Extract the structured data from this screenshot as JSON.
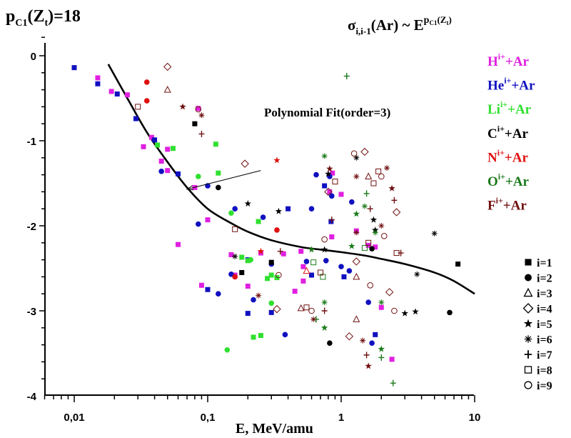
{
  "chart_data": {
    "type": "scatter",
    "title_left": {
      "main": "p",
      "sub": "C1",
      "paren": "(Z",
      "paren_sub": "t",
      "rest": ")=18"
    },
    "title_right": {
      "sigma": "σ",
      "sigma_sub": "i,i-1",
      "mid": "(Ar) ~ E",
      "exp": "p",
      "exp_sub": "C1",
      "exp_paren": "(Z",
      "exp_paren_sub": "t",
      "exp_close": ")"
    },
    "xlabel": "E, MeV/amu",
    "ylabel": "",
    "xscale": "log",
    "xlim": [
      0.006,
      10
    ],
    "ylim": [
      -4,
      0.25
    ],
    "xticks": [
      {
        "v": 0.01,
        "label": "0,01"
      },
      {
        "v": 0.1,
        "label": "0,1"
      },
      {
        "v": 1,
        "label": "1"
      },
      {
        "v": 10,
        "label": "10"
      }
    ],
    "yticks": [
      {
        "v": 0,
        "label": "0"
      },
      {
        "v": -1,
        "label": "-1"
      },
      {
        "v": -2,
        "label": "-2"
      },
      {
        "v": -3,
        "label": "-3"
      },
      {
        "v": -4,
        "label": "-4"
      }
    ],
    "annotation": {
      "text": "Polynomial Fit(order=3)",
      "arrow_from": [
        0.25,
        -1.35
      ],
      "arrow_to": [
        0.07,
        -1.57
      ]
    },
    "fit_curve": {
      "name": "Polynomial Fit(order=3)",
      "x": [
        0.018,
        0.025,
        0.035,
        0.05,
        0.07,
        0.1,
        0.15,
        0.2,
        0.3,
        0.5,
        0.7,
        1.0,
        1.5,
        2.0,
        3.0,
        5.0,
        7.0,
        10.0
      ],
      "y": [
        -0.1,
        -0.5,
        -0.9,
        -1.25,
        -1.55,
        -1.8,
        -1.97,
        -2.07,
        -2.17,
        -2.25,
        -2.28,
        -2.31,
        -2.35,
        -2.39,
        -2.45,
        -2.55,
        -2.65,
        -2.8
      ]
    },
    "legend_projectiles": [
      {
        "label": "H",
        "sup": "i+",
        "suffix": "+Ar",
        "color": "#e020e0"
      },
      {
        "label": "He",
        "sup": "i+",
        "suffix": "+Ar",
        "color": "#1010c0"
      },
      {
        "label": "Li",
        "sup": "i+",
        "suffix": "+Ar",
        "color": "#30e030"
      },
      {
        "label": "C",
        "sup": "i+",
        "suffix": "+Ar",
        "color": "#000000"
      },
      {
        "label": "N",
        "sup": "i+",
        "suffix": "+Ar",
        "color": "#e01010"
      },
      {
        "label": "O",
        "sup": "i+",
        "suffix": "+Ar",
        "color": "#1a7a1a"
      },
      {
        "label": "F",
        "sup": "i+",
        "suffix": "+Ar",
        "color": "#701010"
      }
    ],
    "legend_charge": [
      {
        "marker": "square",
        "label": "i=1"
      },
      {
        "marker": "circle",
        "label": "i=2"
      },
      {
        "marker": "triangle",
        "label": "i=3"
      },
      {
        "marker": "diamond",
        "label": "i=4"
      },
      {
        "marker": "star",
        "label": "i=5"
      },
      {
        "marker": "asterisk",
        "label": "i=6"
      },
      {
        "marker": "plus",
        "label": "i=7"
      },
      {
        "marker": "open-square",
        "label": "i=8"
      },
      {
        "marker": "open-circle",
        "label": "i=9"
      }
    ],
    "series": [
      {
        "name": "H",
        "color": "#e020e0",
        "points": [
          [
            0.015,
            -0.26
          ],
          [
            0.019,
            -0.42
          ],
          [
            0.025,
            -0.46
          ],
          [
            0.038,
            -0.96
          ],
          [
            0.033,
            -1.07
          ],
          [
            0.045,
            -1.24
          ],
          [
            0.05,
            -1.35
          ],
          [
            0.085,
            -0.62
          ],
          [
            0.05,
            -1.1
          ],
          [
            0.08,
            -1.55
          ],
          [
            0.06,
            -2.22
          ],
          [
            0.1,
            -1.93
          ],
          [
            0.15,
            -2.34
          ],
          [
            0.09,
            -2.7
          ],
          [
            0.25,
            -2.32
          ],
          [
            0.37,
            -2.33
          ],
          [
            0.5,
            -2.3
          ],
          [
            0.52,
            -2.48
          ],
          [
            0.52,
            -2.65
          ],
          [
            0.2,
            -2.71
          ],
          [
            0.45,
            -2.77
          ],
          [
            0.82,
            -1.6
          ],
          [
            0.86,
            -1.38
          ],
          [
            1.3,
            -2.06
          ],
          [
            1.6,
            -2.23
          ],
          [
            1.8,
            -2.25
          ],
          [
            2.0,
            -2.96
          ],
          [
            2.4,
            -3.57
          ],
          [
            0.85,
            -2.13
          ],
          [
            0.16,
            -2.58
          ],
          [
            1.0,
            -1.63
          ]
        ]
      },
      {
        "name": "He",
        "color": "#1010c0",
        "points": [
          [
            0.01,
            -0.14
          ],
          [
            0.015,
            -0.33
          ],
          [
            0.021,
            -0.45
          ],
          [
            0.029,
            -0.74
          ],
          [
            0.04,
            -0.99
          ],
          [
            0.045,
            -1.36
          ],
          [
            0.06,
            -1.39
          ],
          [
            0.1,
            -1.53
          ],
          [
            0.085,
            -1.98
          ],
          [
            0.1,
            -2.75
          ],
          [
            0.15,
            -2.57
          ],
          [
            0.12,
            -2.8
          ],
          [
            0.2,
            -3.03
          ],
          [
            0.22,
            -2.87
          ],
          [
            0.38,
            -3.28
          ],
          [
            0.3,
            -3.02
          ],
          [
            0.6,
            -1.8
          ],
          [
            0.65,
            -1.4
          ],
          [
            0.75,
            -1.53
          ],
          [
            0.82,
            -1.42
          ],
          [
            0.85,
            -1.65
          ],
          [
            0.84,
            -1.95
          ],
          [
            1.2,
            -1.72
          ],
          [
            0.55,
            -2.42
          ],
          [
            0.6,
            -2.58
          ],
          [
            0.77,
            -2.41
          ],
          [
            1.0,
            -2.48
          ],
          [
            1.05,
            -2.6
          ],
          [
            1.15,
            -2.53
          ],
          [
            1.6,
            -2.9
          ],
          [
            1.8,
            -3.28
          ],
          [
            1.7,
            -3.38
          ],
          [
            0.3,
            -2.45
          ],
          [
            0.2,
            -2.4
          ],
          [
            0.16,
            -1.8
          ],
          [
            0.26,
            -1.9
          ],
          [
            0.4,
            -1.8
          ]
        ]
      },
      {
        "name": "Li",
        "color": "#30e030",
        "points": [
          [
            0.042,
            -1.05
          ],
          [
            0.055,
            -1.09
          ],
          [
            0.085,
            -1.42
          ],
          [
            0.115,
            -1.04
          ],
          [
            0.12,
            -1.38
          ],
          [
            0.15,
            -1.85
          ],
          [
            0.24,
            -1.95
          ],
          [
            0.18,
            -2.37
          ],
          [
            0.21,
            -2.4
          ],
          [
            0.3,
            -2.58
          ],
          [
            0.33,
            -2.61
          ],
          [
            0.3,
            -2.91
          ],
          [
            0.22,
            -3.31
          ],
          [
            0.25,
            -3.29
          ],
          [
            0.14,
            -3.46
          ],
          [
            0.28,
            -2.62
          ],
          [
            0.2,
            -2.41
          ]
        ]
      },
      {
        "name": "C",
        "color": "#000000",
        "points": [
          [
            0.08,
            -0.8
          ],
          [
            0.12,
            -1.55
          ],
          [
            0.2,
            -1.74
          ],
          [
            0.34,
            -1.83
          ],
          [
            0.16,
            -2.36
          ],
          [
            0.18,
            -2.55
          ],
          [
            0.82,
            -3.38
          ],
          [
            1.8,
            -2.05
          ],
          [
            0.8,
            -1.39
          ],
          [
            1.3,
            -1.2
          ],
          [
            0.3,
            -2.43
          ],
          [
            1.7,
            -2.27
          ],
          [
            3.0,
            -3.03
          ],
          [
            3.6,
            -3.01
          ],
          [
            5.0,
            -2.09
          ],
          [
            7.5,
            -2.45
          ],
          [
            6.5,
            -3.02
          ],
          [
            1.75,
            -1.93
          ],
          [
            0.75,
            -2.28
          ],
          [
            3.7,
            -2.57
          ]
        ]
      },
      {
        "name": "N",
        "color": "#e01010",
        "points": [
          [
            0.035,
            -0.31
          ],
          [
            0.035,
            -0.53
          ],
          [
            0.16,
            -2.6
          ],
          [
            0.33,
            -2.05
          ],
          [
            0.33,
            -1.23
          ],
          [
            0.25,
            -2.3
          ],
          [
            0.55,
            -2.53
          ]
        ]
      },
      {
        "name": "O",
        "color": "#1a7a1a",
        "points": [
          [
            1.1,
            -0.24
          ],
          [
            0.75,
            -1.18
          ],
          [
            0.6,
            -2.28
          ],
          [
            0.73,
            -2.6
          ],
          [
            0.75,
            -2.9
          ],
          [
            0.75,
            -3.2
          ],
          [
            0.65,
            -3.1
          ],
          [
            1.55,
            -1.62
          ],
          [
            1.5,
            -1.77
          ],
          [
            1.3,
            -1.86
          ],
          [
            1.5,
            -2.26
          ],
          [
            2.0,
            -2.9
          ],
          [
            2.0,
            -3.45
          ],
          [
            2.0,
            -3.55
          ],
          [
            2.45,
            -3.85
          ],
          [
            1.8,
            -2.08
          ],
          [
            1.2,
            -2.24
          ],
          [
            0.62,
            -2.43
          ]
        ]
      },
      {
        "name": "F",
        "color": "#701010",
        "points": [
          [
            0.05,
            -0.13
          ],
          [
            0.05,
            -0.4
          ],
          [
            0.03,
            -0.6
          ],
          [
            0.085,
            -0.63
          ],
          [
            0.09,
            -0.7
          ],
          [
            0.09,
            -0.92
          ],
          [
            0.065,
            -0.6
          ],
          [
            0.19,
            -1.27
          ],
          [
            0.16,
            -2.04
          ],
          [
            0.35,
            -2.3
          ],
          [
            0.34,
            -2.58
          ],
          [
            0.24,
            -2.82
          ],
          [
            0.33,
            -2.98
          ],
          [
            0.5,
            -2.97
          ],
          [
            0.55,
            -2.96
          ],
          [
            0.6,
            -3.0
          ],
          [
            0.62,
            -3.1
          ],
          [
            0.75,
            -3.0
          ],
          [
            0.82,
            -1.33
          ],
          [
            0.8,
            -1.6
          ],
          [
            0.9,
            -1.48
          ],
          [
            0.85,
            -1.93
          ],
          [
            1.25,
            -1.15
          ],
          [
            1.3,
            -1.42
          ],
          [
            1.5,
            -1.13
          ],
          [
            1.6,
            -1.42
          ],
          [
            1.9,
            -1.36
          ],
          [
            2.0,
            -1.42
          ],
          [
            2.2,
            -1.32
          ],
          [
            2.5,
            -1.7
          ],
          [
            2.4,
            -1.56
          ],
          [
            2.6,
            -1.84
          ],
          [
            1.75,
            -1.5
          ],
          [
            1.65,
            -1.8
          ],
          [
            2.1,
            -2.12
          ],
          [
            1.3,
            -2.08
          ],
          [
            1.3,
            -2.42
          ],
          [
            1.3,
            -2.6
          ],
          [
            1.6,
            -2.2
          ],
          [
            1.65,
            -2.7
          ],
          [
            1.45,
            -3.35
          ],
          [
            1.55,
            -3.52
          ],
          [
            1.6,
            -3.65
          ],
          [
            2.3,
            -2.78
          ],
          [
            2.6,
            -2.32
          ],
          [
            2.8,
            -2.32
          ],
          [
            2.5,
            -3.0
          ],
          [
            2.0,
            -2.0
          ],
          [
            1.15,
            -3.3
          ],
          [
            1.3,
            -3.1
          ],
          [
            0.7,
            -2.55
          ],
          [
            0.75,
            -2.16
          ]
        ]
      }
    ]
  }
}
